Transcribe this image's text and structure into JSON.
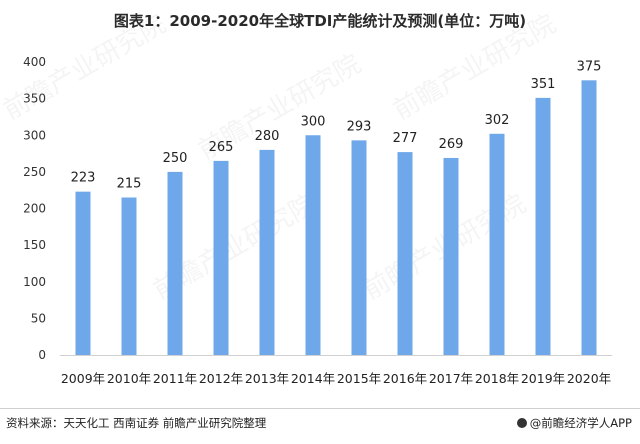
{
  "chart_data": {
    "type": "bar",
    "title": "图表1：2009-2020年全球TDI产能统计及预测(单位：万吨)",
    "categories": [
      "2009年",
      "2010年",
      "2011年",
      "2012年",
      "2013年",
      "2014年",
      "2015年",
      "2016年",
      "2017年",
      "2018年",
      "2019年",
      "2020年"
    ],
    "values": [
      223,
      215,
      250,
      265,
      280,
      300,
      293,
      277,
      269,
      302,
      351,
      375
    ],
    "ylim": [
      0,
      400
    ],
    "yticks": [
      0,
      50,
      100,
      150,
      200,
      250,
      300,
      350,
      400
    ],
    "bar_color": "#6fa8ea",
    "data_labels": true,
    "grid": false
  },
  "footer": {
    "source": "资料来源：天天化工 西南证券 前瞻产业研究院整理",
    "brand": "@前瞻经济学人APP"
  },
  "watermark": "前瞻产业研究院"
}
